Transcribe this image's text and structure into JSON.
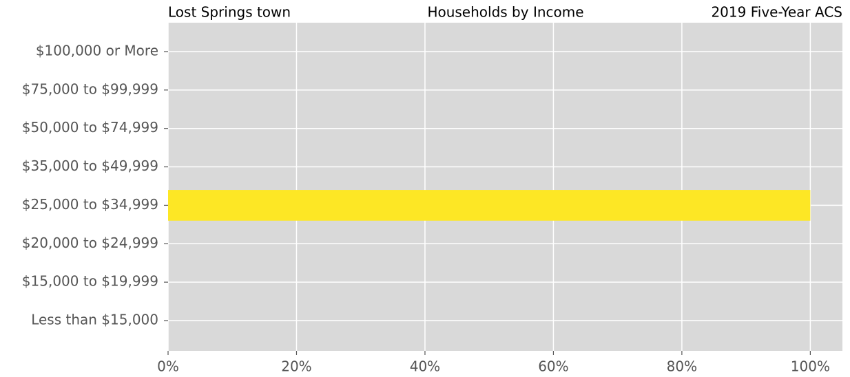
{
  "chart_data": {
    "type": "barh",
    "title": "Households by Income",
    "title_left": "Lost Springs town",
    "title_right": "2019 Five-Year ACS",
    "categories": [
      "Less than $15,000",
      "$15,000 to $19,999",
      "$20,000 to $24,999",
      "$25,000 to $34,999",
      "$35,000 to $49,999",
      "$50,000 to $74,999",
      "$75,000 to $99,999",
      "$100,000 or More"
    ],
    "values": [
      0,
      0,
      0,
      100,
      0,
      0,
      0,
      0
    ],
    "color": "#fde725",
    "xlim": [
      0,
      105
    ],
    "xticks": [
      {
        "value": 0,
        "label": "0%"
      },
      {
        "value": 20,
        "label": "20%"
      },
      {
        "value": 40,
        "label": "40%"
      },
      {
        "value": 60,
        "label": "60%"
      },
      {
        "value": 80,
        "label": "80%"
      },
      {
        "value": 100,
        "label": "100%"
      }
    ],
    "grid": true
  }
}
